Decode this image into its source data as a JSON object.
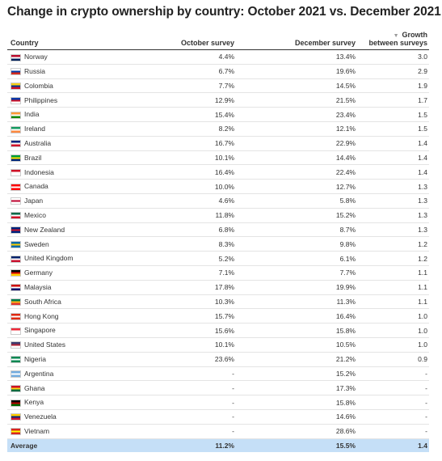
{
  "title": "Change in crypto ownership by country: October 2021 vs. December 2021",
  "headers": {
    "country": "Country",
    "october": "October survey",
    "december": "December survey",
    "growth_line1": "Growth",
    "growth_line2": "between surveys",
    "sort_icon": "sort-descending-icon"
  },
  "rows": [
    {
      "country": "Norway",
      "flag": [
        "#ba0c2f",
        "#ffffff",
        "#00205b"
      ],
      "october": "4.4%",
      "december": "13.4%",
      "growth": "3.0"
    },
    {
      "country": "Russia",
      "flag": [
        "#ffffff",
        "#0039a6",
        "#d52b1e"
      ],
      "october": "6.7%",
      "december": "19.6%",
      "growth": "2.9"
    },
    {
      "country": "Colombia",
      "flag": [
        "#fcd116",
        "#003893",
        "#ce1126"
      ],
      "october": "7.7%",
      "december": "14.5%",
      "growth": "1.9"
    },
    {
      "country": "Philippines",
      "flag": [
        "#0038a8",
        "#ce1126",
        "#ffffff"
      ],
      "october": "12.9%",
      "december": "21.5%",
      "growth": "1.7"
    },
    {
      "country": "India",
      "flag": [
        "#ff9933",
        "#ffffff",
        "#138808"
      ],
      "october": "15.4%",
      "december": "23.4%",
      "growth": "1.5"
    },
    {
      "country": "Ireland",
      "flag": [
        "#169b62",
        "#ffffff",
        "#ff883e"
      ],
      "october": "8.2%",
      "december": "12.1%",
      "growth": "1.5"
    },
    {
      "country": "Australia",
      "flag": [
        "#00247d",
        "#ffffff",
        "#cf142b"
      ],
      "october": "16.7%",
      "december": "22.9%",
      "growth": "1.4"
    },
    {
      "country": "Brazil",
      "flag": [
        "#009c3b",
        "#ffdf00",
        "#002776"
      ],
      "october": "10.1%",
      "december": "14.4%",
      "growth": "1.4"
    },
    {
      "country": "Indonesia",
      "flag": [
        "#ce1126",
        "#ffffff",
        "#ffffff"
      ],
      "october": "16.4%",
      "december": "22.4%",
      "growth": "1.4"
    },
    {
      "country": "Canada",
      "flag": [
        "#ff0000",
        "#ffffff",
        "#ff0000"
      ],
      "october": "10.0%",
      "december": "12.7%",
      "growth": "1.3"
    },
    {
      "country": "Japan",
      "flag": [
        "#ffffff",
        "#bc002d",
        "#ffffff"
      ],
      "october": "4.6%",
      "december": "5.8%",
      "growth": "1.3"
    },
    {
      "country": "Mexico",
      "flag": [
        "#006847",
        "#ffffff",
        "#ce1126"
      ],
      "october": "11.8%",
      "december": "15.2%",
      "growth": "1.3"
    },
    {
      "country": "New Zealand",
      "flag": [
        "#00247d",
        "#cc142b",
        "#00247d"
      ],
      "october": "6.8%",
      "december": "8.7%",
      "growth": "1.3"
    },
    {
      "country": "Sweden",
      "flag": [
        "#006aa7",
        "#fecc00",
        "#006aa7"
      ],
      "october": "8.3%",
      "december": "9.8%",
      "growth": "1.2"
    },
    {
      "country": "United Kingdom",
      "flag": [
        "#012169",
        "#ffffff",
        "#c8102e"
      ],
      "october": "5.2%",
      "december": "6.1%",
      "growth": "1.2"
    },
    {
      "country": "Germany",
      "flag": [
        "#000000",
        "#dd0000",
        "#ffce00"
      ],
      "october": "7.1%",
      "december": "7.7%",
      "growth": "1.1"
    },
    {
      "country": "Malaysia",
      "flag": [
        "#cc0001",
        "#ffffff",
        "#010066"
      ],
      "october": "17.8%",
      "december": "19.9%",
      "growth": "1.1"
    },
    {
      "country": "South Africa",
      "flag": [
        "#007a4d",
        "#ffb612",
        "#de3831"
      ],
      "october": "10.3%",
      "december": "11.3%",
      "growth": "1.1"
    },
    {
      "country": "Hong Kong",
      "flag": [
        "#de2910",
        "#ffffff",
        "#de2910"
      ],
      "october": "15.7%",
      "december": "16.4%",
      "growth": "1.0"
    },
    {
      "country": "Singapore",
      "flag": [
        "#ed2939",
        "#ffffff",
        "#ffffff"
      ],
      "october": "15.6%",
      "december": "15.8%",
      "growth": "1.0"
    },
    {
      "country": "United States",
      "flag": [
        "#3c3b6e",
        "#b22234",
        "#ffffff"
      ],
      "october": "10.1%",
      "december": "10.5%",
      "growth": "1.0"
    },
    {
      "country": "Nigeria",
      "flag": [
        "#008751",
        "#ffffff",
        "#008751"
      ],
      "october": "23.6%",
      "december": "21.2%",
      "growth": "0.9"
    },
    {
      "country": "Argentina",
      "flag": [
        "#74acdf",
        "#ffffff",
        "#74acdf"
      ],
      "october": "-",
      "december": "15.2%",
      "growth": "-"
    },
    {
      "country": "Ghana",
      "flag": [
        "#ce1126",
        "#fcd116",
        "#006b3f"
      ],
      "october": "-",
      "december": "17.3%",
      "growth": "-"
    },
    {
      "country": "Kenya",
      "flag": [
        "#000000",
        "#bb0000",
        "#006600"
      ],
      "october": "-",
      "december": "15.8%",
      "growth": "-"
    },
    {
      "country": "Venezuela",
      "flag": [
        "#ffcc00",
        "#00247d",
        "#cf142b"
      ],
      "october": "-",
      "december": "14.6%",
      "growth": "-"
    },
    {
      "country": "Vietnam",
      "flag": [
        "#da251d",
        "#ffff00",
        "#da251d"
      ],
      "october": "-",
      "december": "28.6%",
      "growth": "-"
    }
  ],
  "average": {
    "label": "Average",
    "october": "11.2%",
    "december": "15.5%",
    "growth": "1.4"
  },
  "colors": {
    "average_row": "#c5dff7",
    "header_rule": "#333333",
    "row_rule": "#e4e4e4"
  }
}
